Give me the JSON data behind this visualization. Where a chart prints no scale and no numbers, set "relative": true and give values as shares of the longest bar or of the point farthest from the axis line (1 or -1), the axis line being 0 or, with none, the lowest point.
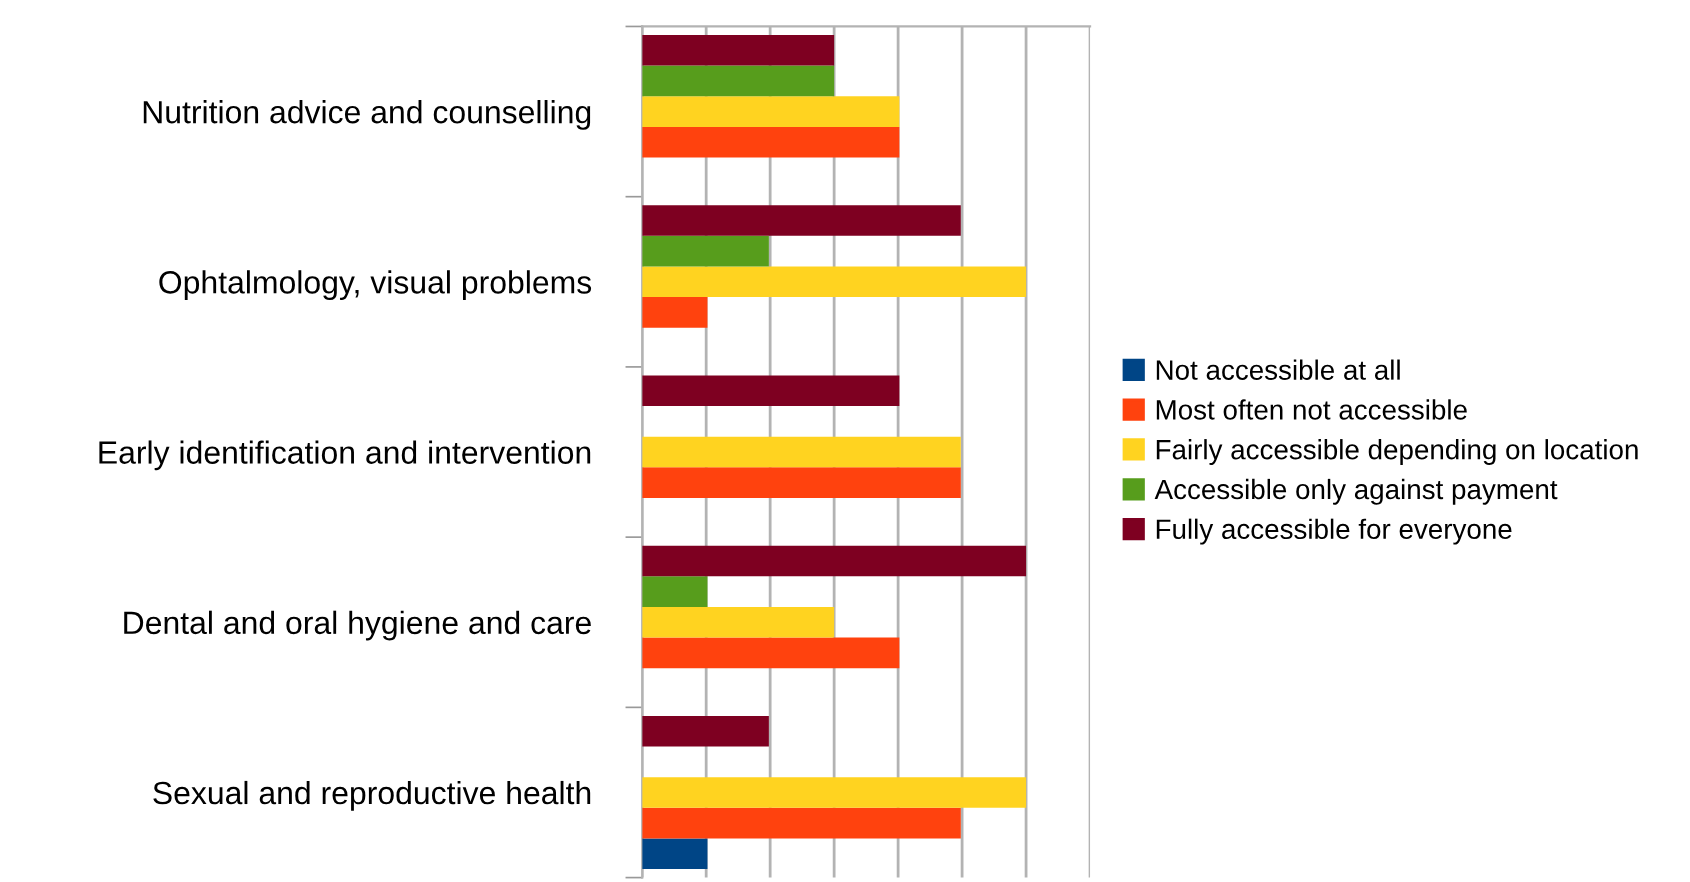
{
  "chart_data": {
    "type": "bar",
    "orientation": "horizontal",
    "relative": true,
    "grid": "x",
    "legend": "right",
    "categories": [
      "Nutrition advice and counselling",
      "Ophtalmology, visual problems",
      "Early identification and intervention",
      "Dental and oral hygiene and care",
      "Sexual and reproductive health"
    ],
    "series": [
      {
        "name": "Not accessible at all",
        "color": "#004586",
        "values": [
          0,
          0,
          0,
          0,
          0.17
        ]
      },
      {
        "name": "Most often not accessible",
        "color": "#ff420e",
        "values": [
          0.67,
          0.17,
          0.83,
          0.67,
          0.83
        ]
      },
      {
        "name": "Fairly accessible depending on location",
        "color": "#ffd320",
        "values": [
          0.67,
          1,
          0.83,
          0.5,
          1
        ]
      },
      {
        "name": "Accessible only against payment",
        "color": "#579d1c",
        "values": [
          0.5,
          0.33,
          0,
          0.17,
          0
        ]
      },
      {
        "name": "Fully accessible for everyone",
        "color": "#7e0021",
        "values": [
          0.5,
          0.83,
          0.67,
          1,
          0.33
        ]
      }
    ]
  }
}
